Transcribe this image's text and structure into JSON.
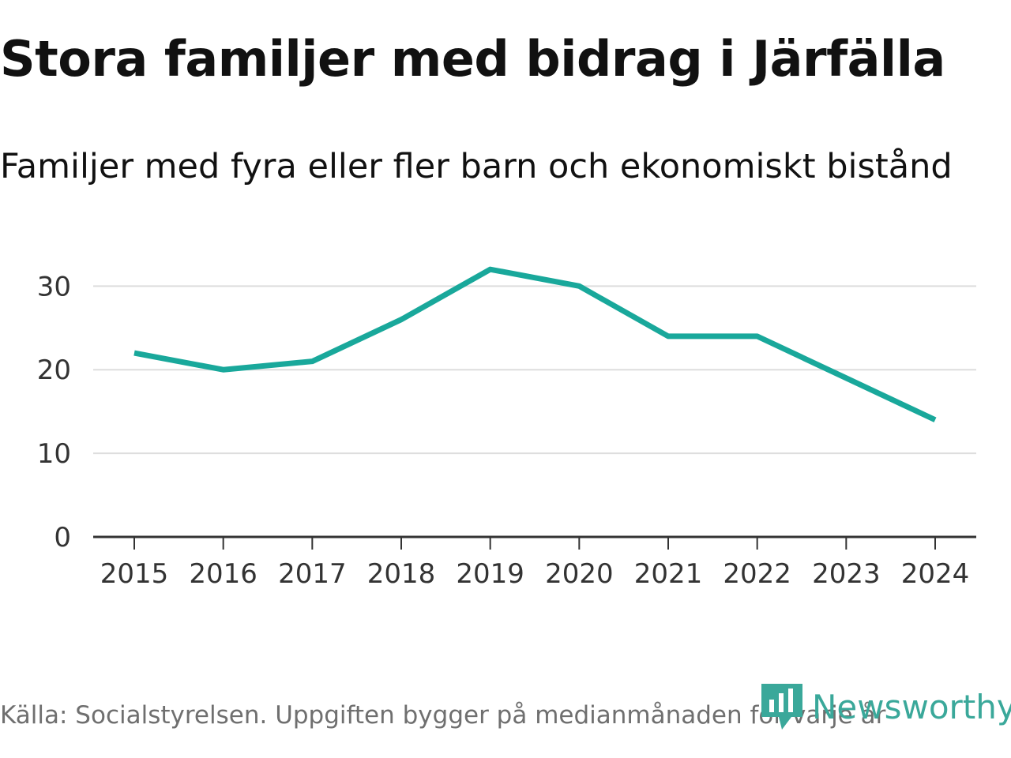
{
  "chart_data": {
    "type": "line",
    "title": "Stora familjer med bidrag i Järfälla",
    "subtitle": "Familjer med fyra eller fler barn och ekonomiskt bistånd",
    "categories": [
      "2015",
      "2016",
      "2017",
      "2018",
      "2019",
      "2020",
      "2021",
      "2022",
      "2023",
      "2024"
    ],
    "series": [
      {
        "name": "Familjer",
        "values": [
          22,
          20,
          21,
          26,
          32,
          30,
          24,
          24,
          19,
          14
        ]
      }
    ],
    "yticks": [
      "0",
      "10",
      "20",
      "30"
    ],
    "ylim": [
      0,
      34
    ],
    "xlabel": "",
    "ylabel": "",
    "grid": true,
    "color": "#19a89b"
  },
  "footer": {
    "source": "Källa: Socialstyrelsen. Uppgiften bygger på medianmånaden för varje år",
    "brand": "Newsworthy",
    "brand_color": "#3aa89a"
  }
}
